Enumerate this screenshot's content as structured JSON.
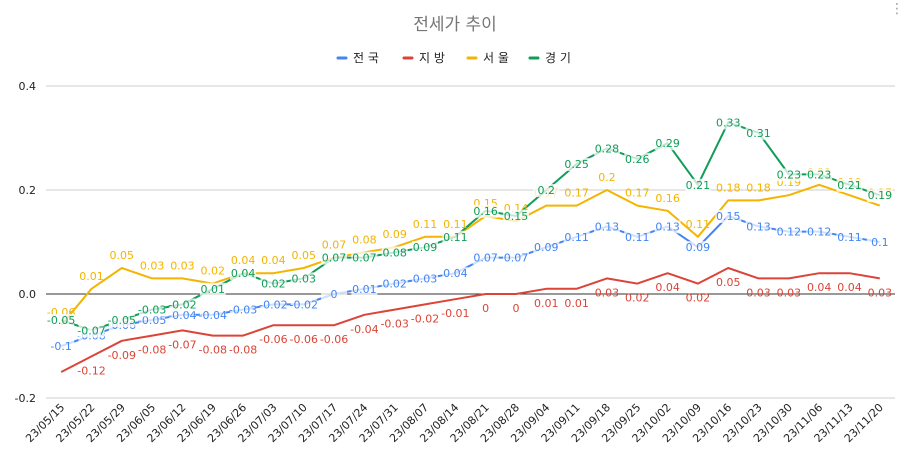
{
  "chart_data": {
    "type": "line",
    "title": "전세가 추이",
    "categories": [
      "23/05/15",
      "23/05/22",
      "23/05/29",
      "23/06/05",
      "23/06/12",
      "23/06/19",
      "23/06/26",
      "23/07/03",
      "23/07/10",
      "23/07/17",
      "23/07/24",
      "23/07/31",
      "23/08/07",
      "23/08/14",
      "23/08/21",
      "23/08/28",
      "23/09/04",
      "23/09/11",
      "23/09/18",
      "23/09/25",
      "23/10/02",
      "23/10/09",
      "23/10/16",
      "23/10/23",
      "23/10/30",
      "23/11/06",
      "23/11/13",
      "23/11/20"
    ],
    "ylim": [
      -0.2,
      0.4
    ],
    "yticks": [
      "0.4",
      "0.2",
      "0.0",
      "-0.2"
    ],
    "grid": "horizontal",
    "legend_position": "top",
    "series": [
      {
        "name": "전국",
        "color": "#4285f4",
        "values": [
          -0.1,
          -0.08,
          -0.06,
          -0.05,
          -0.04,
          -0.04,
          -0.03,
          -0.02,
          -0.02,
          0,
          0.01,
          0.02,
          0.03,
          0.04,
          0.07,
          0.07,
          0.09,
          0.11,
          0.13,
          0.11,
          0.13,
          0.09,
          0.15,
          0.13,
          0.12,
          0.12,
          0.11,
          0.1
        ]
      },
      {
        "name": "지방",
        "color": "#db4437",
        "values": [
          -0.15,
          -0.12,
          -0.09,
          -0.08,
          -0.07,
          -0.08,
          -0.08,
          -0.06,
          -0.06,
          -0.06,
          -0.04,
          -0.03,
          -0.02,
          -0.01,
          0,
          0,
          0.01,
          0.01,
          0.03,
          0.02,
          0.04,
          0.02,
          0.05,
          0.03,
          0.03,
          0.04,
          0.04,
          0.03
        ],
        "labels": [
          "",
          "-0.12",
          "-0.09",
          "-0.08",
          "-0.07",
          "-0.08",
          "-0.08",
          "-0.06",
          "-0.06",
          "-0.06",
          "-0.04",
          "-0.03",
          "-0.02",
          "-0.01",
          "0",
          "0",
          "0.01",
          "0.01",
          "0.03",
          "0.02",
          "0.04",
          "0.02",
          "0.05",
          "0.03",
          "0.03",
          "0.04",
          "0.04",
          "0.03"
        ]
      },
      {
        "name": "서울",
        "color": "#f4b400",
        "values": [
          -0.06,
          0.01,
          0.05,
          0.03,
          0.03,
          0.02,
          0.04,
          0.04,
          0.05,
          0.07,
          0.08,
          0.09,
          0.11,
          0.11,
          0.15,
          0.14,
          0.17,
          0.17,
          0.2,
          0.17,
          0.16,
          0.11,
          0.18,
          0.18,
          0.19,
          0.21,
          0.19,
          0.17
        ]
      },
      {
        "name": "경기",
        "color": "#0f9d58",
        "values": [
          -0.05,
          -0.07,
          -0.05,
          -0.03,
          -0.02,
          0.01,
          0.04,
          0.02,
          0.03,
          0.07,
          0.07,
          0.08,
          0.09,
          0.11,
          0.16,
          0.15,
          0.2,
          0.25,
          0.28,
          0.26,
          0.29,
          0.21,
          0.33,
          0.31,
          0.23,
          0.23,
          0.21,
          0.19
        ]
      }
    ]
  }
}
